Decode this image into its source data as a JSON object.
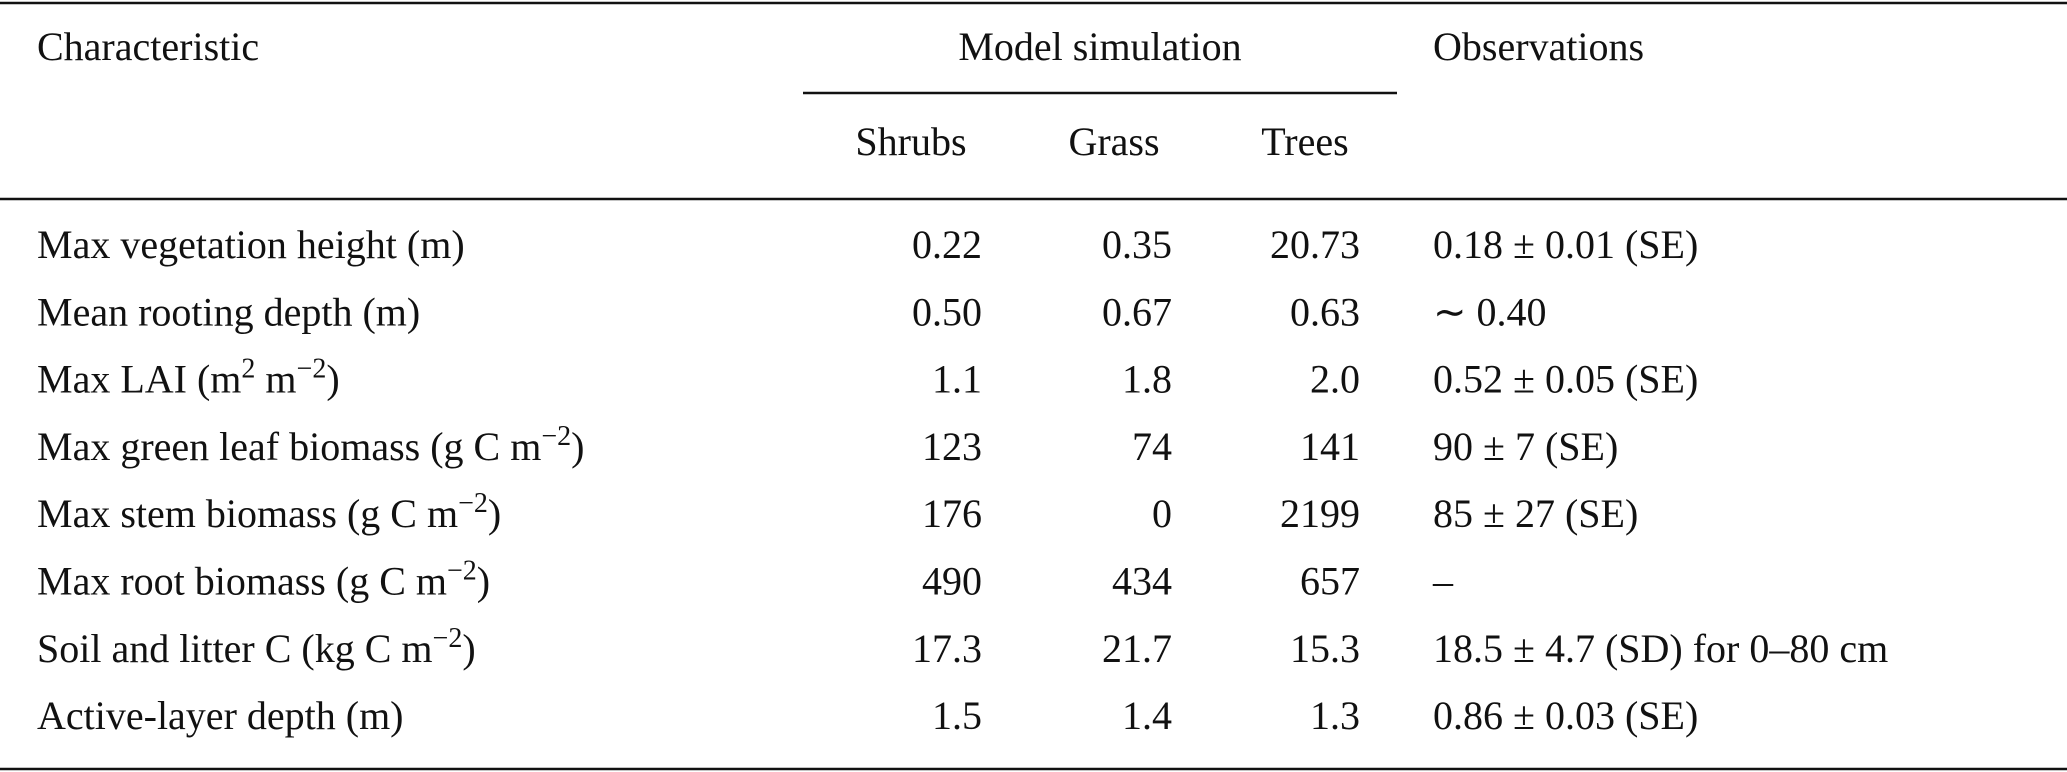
{
  "table": {
    "header": {
      "characteristic": "Characteristic",
      "group": "Model simulation",
      "observations": "Observations",
      "columns": [
        "Shrubs",
        "Grass",
        "Trees"
      ]
    },
    "rows": [
      {
        "label": [
          "Max vegetation height (m)"
        ],
        "values": [
          "0.22",
          "0.35",
          "20.73"
        ],
        "observation": "0.18 ± 0.01 (SE)"
      },
      {
        "label": [
          "Mean rooting depth (m)"
        ],
        "values": [
          "0.50",
          "0.67",
          "0.63"
        ],
        "observation": "∼ 0.40"
      },
      {
        "label": [
          "Max LAI (m",
          "2",
          " m",
          "−2",
          ")"
        ],
        "values": [
          "1.1",
          "1.8",
          "2.0"
        ],
        "observation": "0.52 ± 0.05 (SE)"
      },
      {
        "label": [
          "Max green leaf biomass (g C m",
          "−2",
          ")"
        ],
        "values": [
          "123",
          "74",
          "141"
        ],
        "observation": "90 ± 7 (SE)"
      },
      {
        "label": [
          "Max stem biomass (g C m",
          "−2",
          ")"
        ],
        "values": [
          "176",
          "0",
          "2199"
        ],
        "observation": "85 ± 27 (SE)"
      },
      {
        "label": [
          "Max root biomass (g C m",
          "−2",
          ")"
        ],
        "values": [
          "490",
          "434",
          "657"
        ],
        "observation": "–"
      },
      {
        "label": [
          "Soil and litter C (kg C m",
          "−2",
          ")"
        ],
        "values": [
          "17.3",
          "21.7",
          "15.3"
        ],
        "observation": "18.5 ± 4.7 (SD) for 0–80 cm"
      },
      {
        "label": [
          "Active-layer depth (m)"
        ],
        "values": [
          "1.5",
          "1.4",
          "1.3"
        ],
        "observation": "0.86 ± 0.03 (SE)"
      }
    ]
  }
}
